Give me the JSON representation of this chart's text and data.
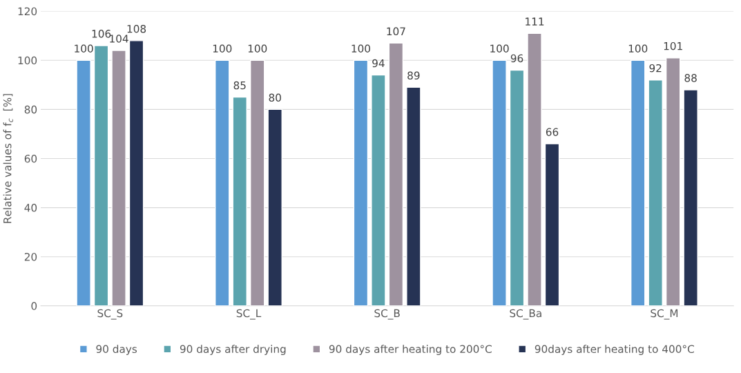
{
  "chart_data": {
    "type": "bar",
    "ylabel": "Relative values of f$_{c}$  [%]",
    "categories": [
      "SC_S",
      "SC_L",
      "SC_B",
      "SC_Ba",
      "SC_M"
    ],
    "series": [
      {
        "name": "90 days",
        "color": "#5b9bd5",
        "values": [
          100,
          100,
          100,
          100,
          100
        ]
      },
      {
        "name": "90 days after drying",
        "color": "#5ba4ae",
        "values": [
          106,
          85,
          94,
          96,
          92
        ]
      },
      {
        "name": "90 days after heating to 200°C",
        "color": "#9e929f",
        "values": [
          104,
          100,
          107,
          111,
          101
        ]
      },
      {
        "name": "90days after heating to 400°C",
        "color": "#263354",
        "values": [
          108,
          80,
          89,
          66,
          88
        ]
      }
    ],
    "ylim": [
      0,
      120
    ],
    "yticks": [
      0,
      20,
      40,
      60,
      80,
      100,
      120
    ],
    "grid": "y",
    "legend": "bottom",
    "data_labels": true
  }
}
